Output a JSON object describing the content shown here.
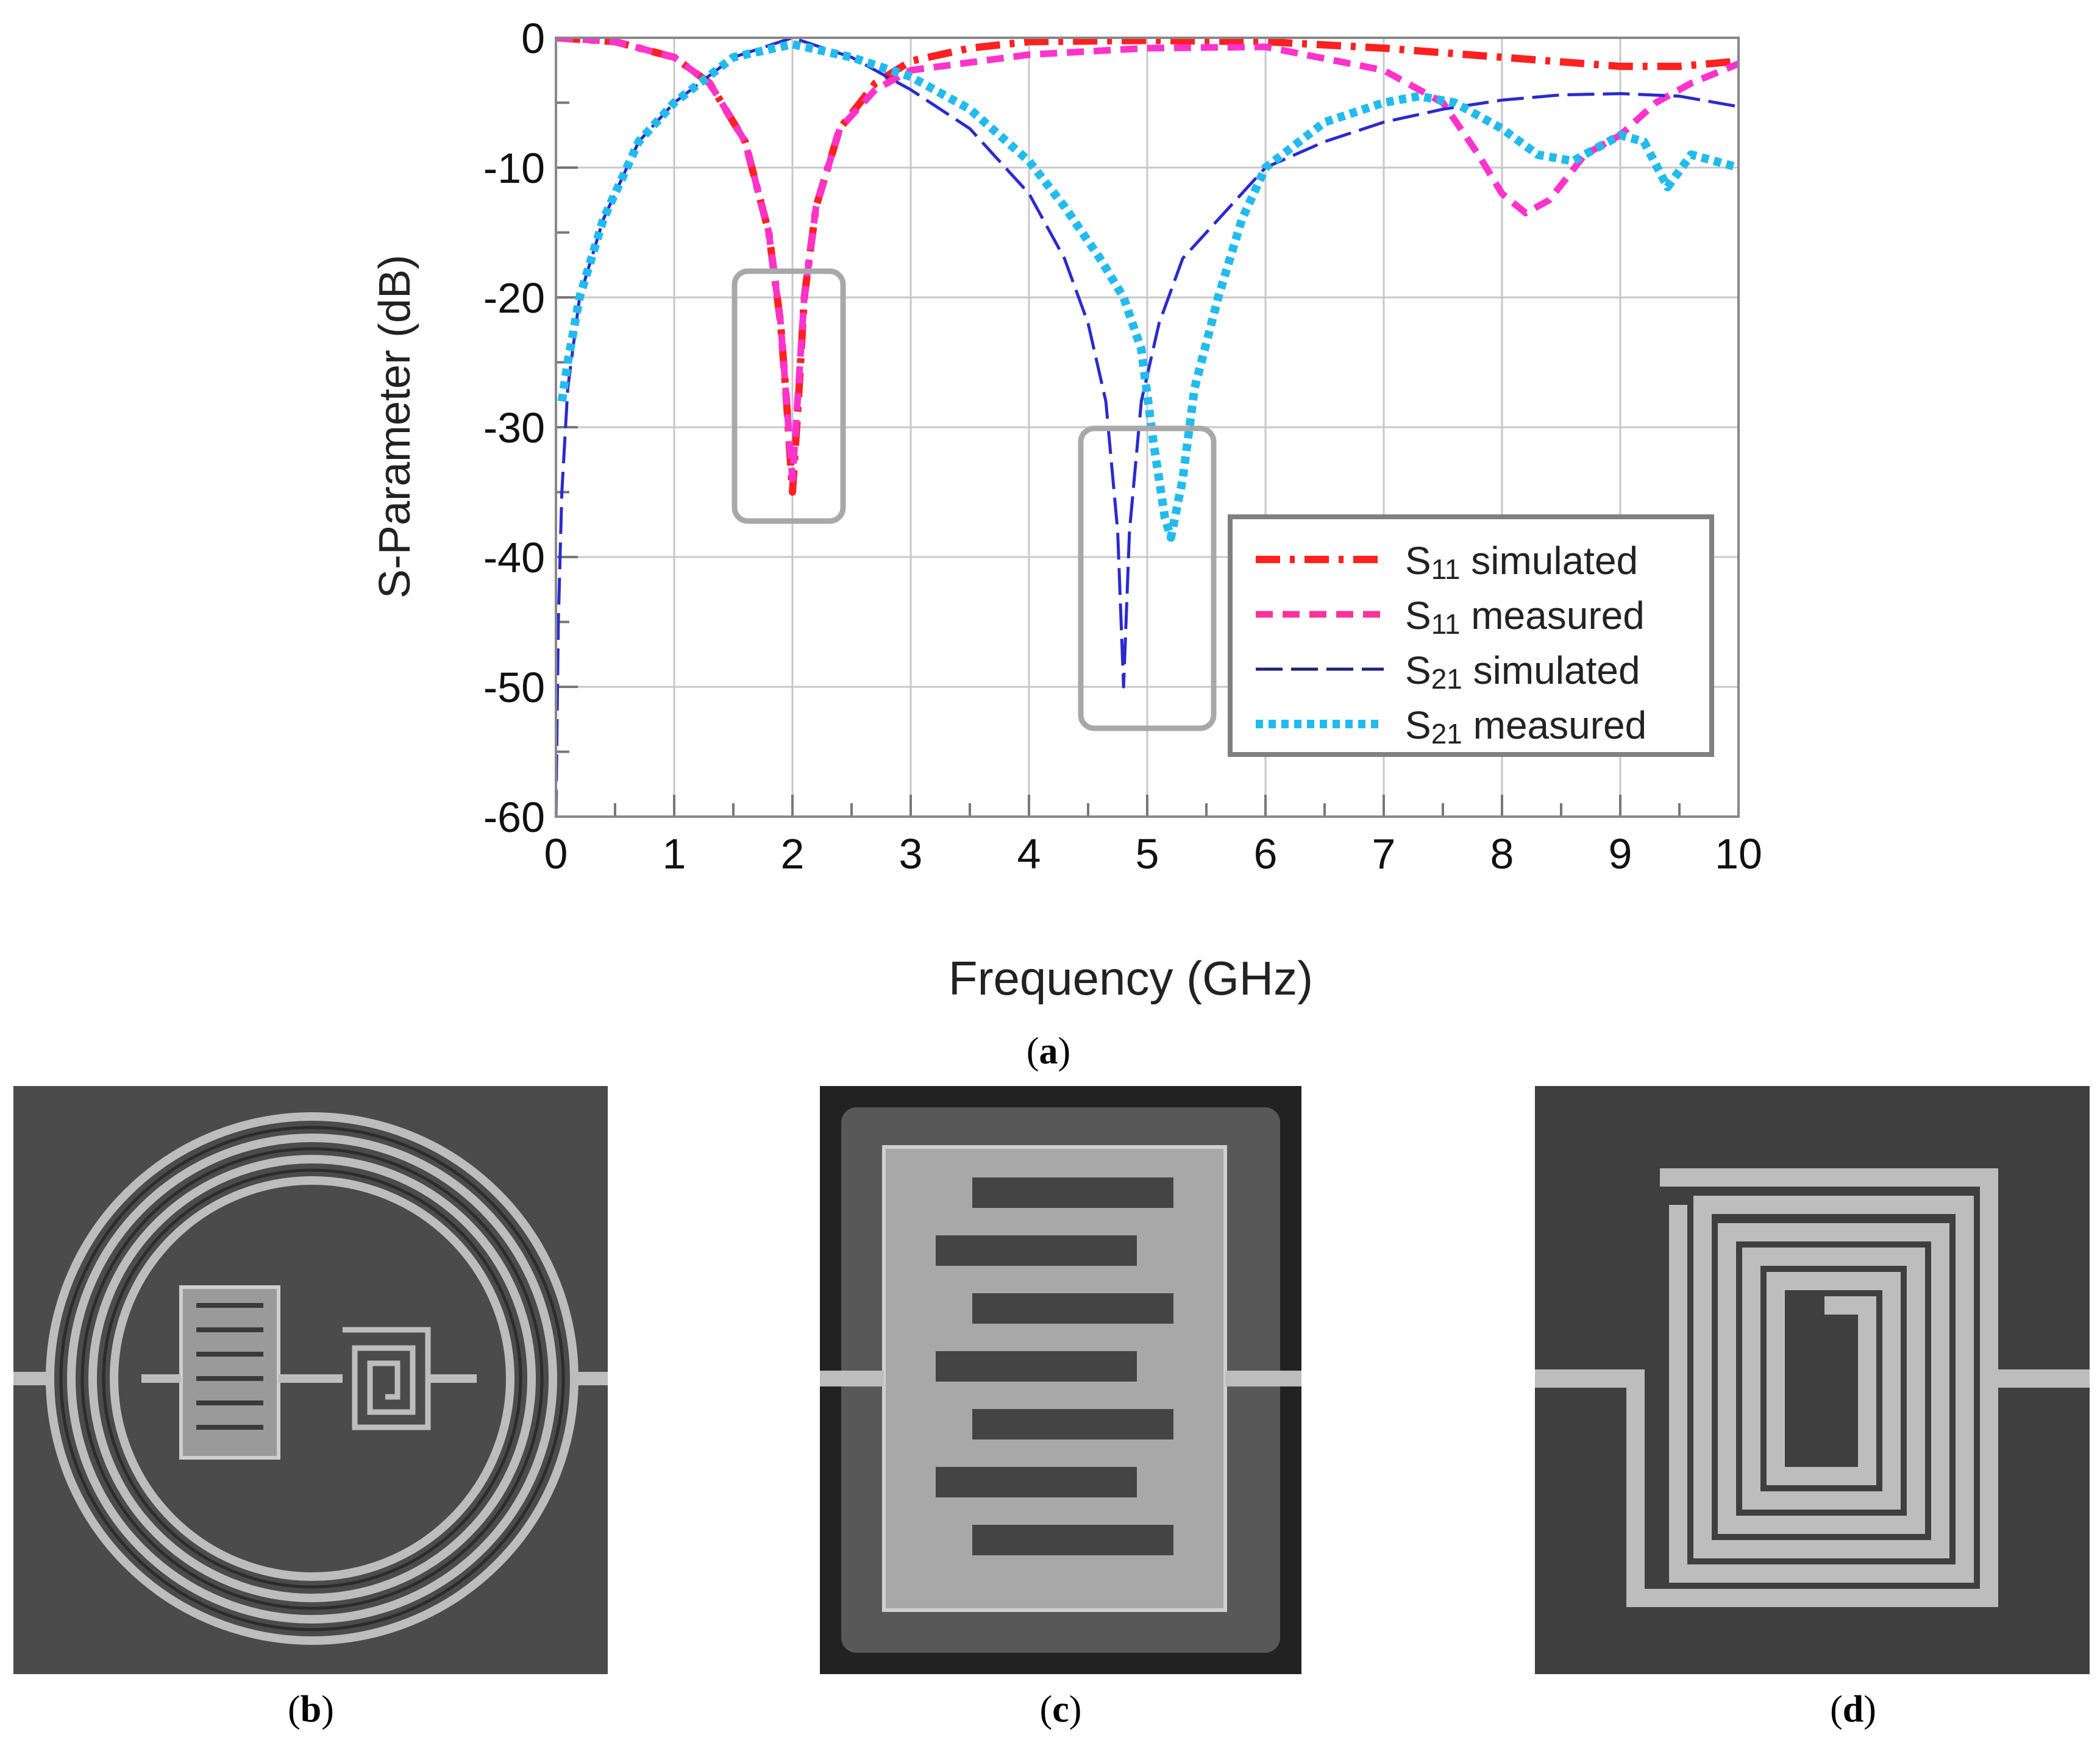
{
  "chart_data": {
    "type": "line",
    "xlabel": "Frequency (GHz)",
    "ylabel": "S-Parameter (dB)",
    "xlim": [
      0,
      10
    ],
    "ylim": [
      -60,
      0
    ],
    "xticks": [
      0,
      1,
      2,
      3,
      4,
      5,
      6,
      7,
      8,
      9,
      10
    ],
    "yticks": [
      0,
      -10,
      -20,
      -30,
      -40,
      -50,
      -60
    ],
    "grid": true,
    "legend_position": "bottom-right",
    "series": [
      {
        "name": "S11 simulated",
        "name_main": "S",
        "name_sub": "11",
        "name_rest": " simulated",
        "color": "#ff2020",
        "style": "dash-dot",
        "x": [
          0,
          0.5,
          1.0,
          1.3,
          1.6,
          1.8,
          1.9,
          1.95,
          2.0,
          2.05,
          2.1,
          2.2,
          2.4,
          2.7,
          3.0,
          3.5,
          4.0,
          5.0,
          6.0,
          7.0,
          8.0,
          9.0,
          9.5,
          10.0
        ],
        "y": [
          0,
          -0.3,
          -1.5,
          -3.5,
          -8,
          -15,
          -22,
          -28,
          -35,
          -28,
          -20,
          -13,
          -7,
          -3.5,
          -1.8,
          -0.8,
          -0.3,
          -0.2,
          -0.3,
          -0.8,
          -1.5,
          -2.2,
          -2.2,
          -1.8
        ]
      },
      {
        "name": "S11 measured",
        "name_main": "S",
        "name_sub": "11",
        "name_rest": " measured",
        "color": "#ff33cc",
        "style": "dashed",
        "x": [
          0,
          0.5,
          1.0,
          1.3,
          1.6,
          1.8,
          1.9,
          1.95,
          2.0,
          2.05,
          2.1,
          2.2,
          2.4,
          2.7,
          3.0,
          4.0,
          5.0,
          6.0,
          7.0,
          7.5,
          7.8,
          8.0,
          8.2,
          8.4,
          8.7,
          9.0,
          9.3,
          9.6,
          10.0
        ],
        "y": [
          0,
          -0.3,
          -1.5,
          -3.5,
          -8,
          -15,
          -22,
          -28,
          -34,
          -27,
          -20,
          -13,
          -7,
          -4,
          -2.5,
          -1.3,
          -0.8,
          -0.7,
          -2.5,
          -5,
          -9,
          -12,
          -13.5,
          -12.5,
          -9,
          -7.5,
          -5,
          -3.5,
          -2
        ]
      },
      {
        "name": "S21 simulated",
        "name_main": "S",
        "name_sub": "21",
        "name_rest": " simulated",
        "color": "#2a2ad0",
        "style": "long-dash",
        "x": [
          0,
          0.02,
          0.05,
          0.1,
          0.2,
          0.4,
          0.7,
          1.0,
          1.5,
          2.0,
          2.5,
          3.0,
          3.5,
          4.0,
          4.3,
          4.5,
          4.65,
          4.75,
          4.8,
          4.85,
          4.95,
          5.1,
          5.3,
          5.6,
          6.0,
          6.5,
          7.0,
          7.5,
          8.0,
          8.5,
          9.0,
          9.5,
          10.0
        ],
        "y": [
          -60,
          -45,
          -35,
          -27,
          -20,
          -14,
          -8,
          -5,
          -1.5,
          0,
          -1.5,
          -4,
          -7,
          -12,
          -17,
          -22,
          -28,
          -38,
          -50,
          -38,
          -28,
          -22,
          -17,
          -14,
          -10,
          -8,
          -6.5,
          -5.5,
          -4.8,
          -4.4,
          -4.3,
          -4.5,
          -5.3
        ]
      },
      {
        "name": "S21 measured",
        "name_main": "S",
        "name_sub": "21",
        "name_rest": " measured",
        "color": "#22bbee",
        "style": "dotted",
        "x": [
          0.05,
          0.1,
          0.2,
          0.4,
          0.7,
          1.0,
          1.5,
          2.0,
          2.5,
          3.0,
          3.5,
          4.0,
          4.3,
          4.6,
          4.8,
          4.95,
          5.05,
          5.15,
          5.2,
          5.3,
          5.4,
          5.6,
          5.8,
          6.0,
          6.5,
          7.0,
          7.3,
          7.6,
          8.0,
          8.3,
          8.6,
          8.8,
          9.0,
          9.2,
          9.4,
          9.6,
          10.0
        ],
        "y": [
          -28,
          -25,
          -20,
          -14,
          -8,
          -5,
          -1.5,
          -0.5,
          -1.5,
          -3,
          -5.5,
          -9.5,
          -13,
          -17,
          -20,
          -24,
          -31,
          -37,
          -38.5,
          -34,
          -27,
          -20,
          -14,
          -10,
          -6.5,
          -5,
          -4.5,
          -5,
          -7,
          -9,
          -9.5,
          -8.5,
          -7.5,
          -8,
          -11.5,
          -9,
          -10
        ]
      }
    ]
  },
  "captions": {
    "a": "a",
    "b": "b",
    "c": "c",
    "d": "d"
  },
  "images": {
    "b": "sem-micrograph-ring-resonator-with-interdigital-capacitor-and-spiral-inductor",
    "c": "sem-micrograph-interdigital-capacitor",
    "d": "sem-micrograph-spiral-inductor"
  }
}
